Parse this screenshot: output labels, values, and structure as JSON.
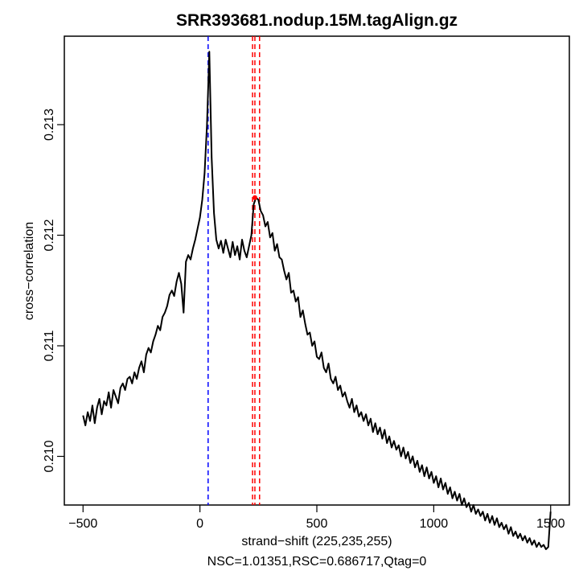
{
  "chart_data": {
    "type": "line",
    "title": "SRR393681.nodup.15M.tagAlign.gz",
    "xlabel": "strand−shift (225,235,255)",
    "xlabel2": "NSC=1.01351,RSC=0.686717,Qtag=0",
    "ylabel": "cross−correlation",
    "xlim": [
      -580,
      1580
    ],
    "ylim": [
      0.20956,
      0.2138
    ],
    "xticks": [
      -500,
      0,
      500,
      1000,
      1500
    ],
    "xtick_labels": [
      "−500",
      "0",
      "500",
      "1000",
      "1500"
    ],
    "yticks": [
      0.21,
      0.211,
      0.212,
      0.213
    ],
    "ytick_labels": [
      "0.210",
      "0.211",
      "0.212",
      "0.213"
    ],
    "grid": false,
    "colors": {
      "line": "#000000",
      "phantom_peak_line": "#0000ff",
      "fragment_length_lines": "#ff0000",
      "marker": "#ff0000"
    },
    "phantom_peak_x": 35,
    "fragment_length_x": [
      225,
      235,
      255
    ],
    "marker_point": {
      "x": 235,
      "y": 0.21234
    },
    "series": [
      {
        "name": "cross-correlation",
        "x_start": -500,
        "x_step": 10,
        "y": [
          0.21037,
          0.21028,
          0.2104,
          0.21032,
          0.21046,
          0.2103,
          0.21044,
          0.21052,
          0.21038,
          0.2105,
          0.21046,
          0.21058,
          0.21044,
          0.2106,
          0.21054,
          0.21048,
          0.21062,
          0.21066,
          0.2106,
          0.2107,
          0.21072,
          0.21066,
          0.21076,
          0.2107,
          0.2108,
          0.21086,
          0.21076,
          0.21092,
          0.21098,
          0.21094,
          0.21104,
          0.2111,
          0.21118,
          0.21114,
          0.21126,
          0.2113,
          0.21136,
          0.21146,
          0.2115,
          0.21145,
          0.21158,
          0.21166,
          0.21156,
          0.2113,
          0.21176,
          0.21182,
          0.21178,
          0.21188,
          0.21196,
          0.21206,
          0.21216,
          0.21232,
          0.21256,
          0.213,
          0.21366,
          0.2127,
          0.2122,
          0.21196,
          0.21188,
          0.21195,
          0.21184,
          0.21196,
          0.21188,
          0.2118,
          0.21194,
          0.21182,
          0.2119,
          0.21178,
          0.21196,
          0.21186,
          0.2118,
          0.2119,
          0.212,
          0.21228,
          0.21234,
          0.21232,
          0.21222,
          0.21218,
          0.21208,
          0.21212,
          0.21198,
          0.21202,
          0.21186,
          0.21192,
          0.2118,
          0.21178,
          0.21168,
          0.2116,
          0.21166,
          0.21148,
          0.2115,
          0.2114,
          0.21144,
          0.21126,
          0.21132,
          0.2112,
          0.2111,
          0.21112,
          0.211,
          0.21104,
          0.2109,
          0.21088,
          0.21094,
          0.2108,
          0.21076,
          0.21084,
          0.2107,
          0.21066,
          0.21072,
          0.2106,
          0.21064,
          0.21054,
          0.21058,
          0.2105,
          0.21044,
          0.21052,
          0.2104,
          0.21046,
          0.21036,
          0.2104,
          0.21032,
          0.21038,
          0.21028,
          0.21034,
          0.21022,
          0.2103,
          0.2102,
          0.21026,
          0.21016,
          0.21024,
          0.21012,
          0.21018,
          0.21008,
          0.21014,
          0.21006,
          0.2101,
          0.21,
          0.21008,
          0.20998,
          0.21004,
          0.20994,
          0.21,
          0.2099,
          0.20996,
          0.20986,
          0.20992,
          0.20982,
          0.2099,
          0.2098,
          0.20986,
          0.20976,
          0.20982,
          0.20972,
          0.2098,
          0.2097,
          0.20976,
          0.20966,
          0.20972,
          0.20962,
          0.20968,
          0.2096,
          0.20966,
          0.20956,
          0.20962,
          0.20954,
          0.20958,
          0.2095,
          0.20956,
          0.20948,
          0.20952,
          0.20946,
          0.2095,
          0.20942,
          0.20948,
          0.2094,
          0.20946,
          0.20938,
          0.20944,
          0.20936,
          0.2094,
          0.20934,
          0.20938,
          0.2093,
          0.20936,
          0.20928,
          0.20932,
          0.20926,
          0.2093,
          0.20924,
          0.20928,
          0.20922,
          0.20926,
          0.2092,
          0.20924,
          0.20918,
          0.20922,
          0.20918,
          0.2092,
          0.20916,
          0.20918,
          0.2095
        ]
      }
    ]
  }
}
